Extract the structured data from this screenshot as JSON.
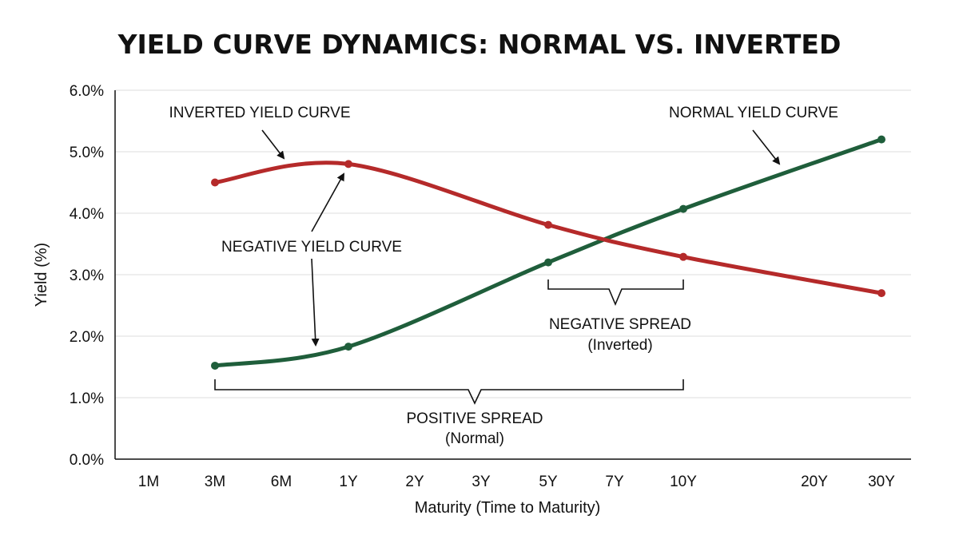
{
  "chart_data": {
    "type": "line",
    "title": "YIELD CURVE DYNAMICS: NORMAL VS. INVERTED",
    "xlabel": "Maturity (Time to Maturity)",
    "ylabel": "Yield (%)",
    "categories": [
      "1M",
      "3M",
      "6M",
      "1Y",
      "2Y",
      "3Y",
      "5Y",
      "7Y",
      "10Y",
      "20Y",
      "30Y"
    ],
    "y_ticks": [
      "0.0%",
      "1.0%",
      "2.0%",
      "3.0%",
      "4.0%",
      "5.0%",
      "6.0%"
    ],
    "ylim": [
      0,
      6
    ],
    "grid": true,
    "series": [
      {
        "key": "normal",
        "color": "#1f5e3b",
        "points": [
          {
            "x": "3M",
            "y": 1.52
          },
          {
            "x": "1Y",
            "y": 1.83
          },
          {
            "x": "5Y",
            "y": 3.2
          },
          {
            "x": "10Y",
            "y": 4.07
          },
          {
            "x": "30Y",
            "y": 5.2
          }
        ]
      },
      {
        "key": "inverted",
        "color": "#b52a2a",
        "points": [
          {
            "x": "3M",
            "y": 4.5
          },
          {
            "x": "1Y",
            "y": 4.8
          },
          {
            "x": "5Y",
            "y": 3.81
          },
          {
            "x": "10Y",
            "y": 3.29
          },
          {
            "x": "30Y",
            "y": 2.7
          }
        ]
      }
    ],
    "annotations": {
      "inverted_label": "INVERTED YIELD CURVE",
      "normal_label": "NORMAL YIELD CURVE",
      "negative_label": "NEGATIVE YIELD CURVE",
      "negative_spread_title": "NEGATIVE SPREAD",
      "negative_spread_sub": "(Inverted)",
      "positive_spread_title": "POSITIVE SPREAD",
      "positive_spread_sub": "(Normal)"
    }
  }
}
